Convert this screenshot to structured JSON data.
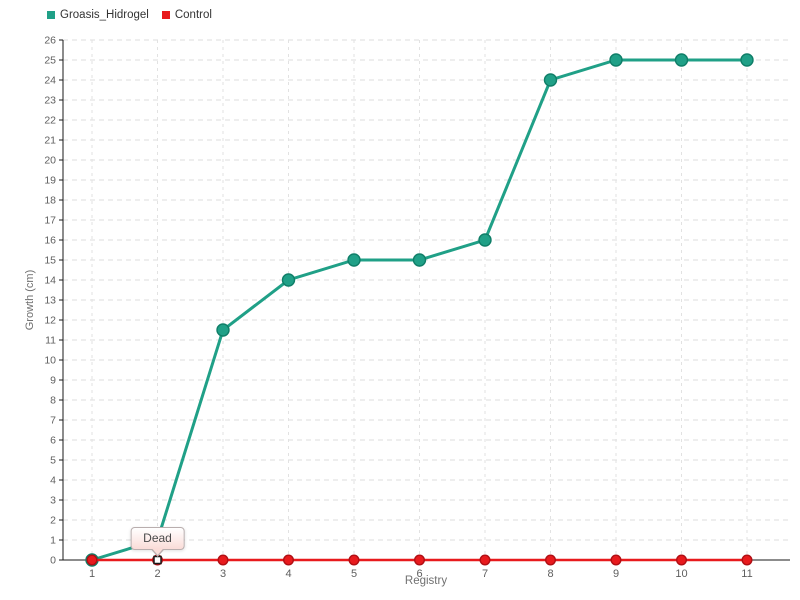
{
  "chart_data": {
    "type": "line",
    "x": [
      1,
      2,
      3,
      4,
      5,
      6,
      7,
      8,
      9,
      10,
      11
    ],
    "x_tick_labels": [
      "1",
      "2",
      "3",
      "4",
      "5",
      "6",
      "7",
      "8",
      "9",
      "10",
      "11"
    ],
    "series": [
      {
        "name": "Groasis_Hidrogel",
        "color": "#20a087",
        "point_border": "#0f7e68",
        "values": [
          0,
          1,
          11.5,
          14,
          15,
          15,
          16,
          24,
          25,
          25,
          25
        ]
      },
      {
        "name": "Control",
        "color": "#e81a1d",
        "point_border": "#b00f14",
        "values": [
          0,
          0,
          0,
          0,
          0,
          0,
          0,
          0,
          0,
          0,
          0
        ]
      }
    ],
    "xlabel": "Registry",
    "ylabel": "Growth (cm)",
    "ylim": [
      0,
      26
    ],
    "y_tick_step": 1,
    "grid": true,
    "legend_position": "top-left",
    "tooltip": {
      "text": "Dead",
      "series": "Control",
      "x": 2
    }
  },
  "colors": {
    "axis": "#1a1a1a",
    "grid_h": "#dcdcdc",
    "grid_v": "#e2e2e2",
    "tick_label": "#5f5f5f",
    "axis_label": "#707070",
    "legend_text": "#333333",
    "tooltip_border": "#b9aeae",
    "tooltip_bg_top": "#ffffff",
    "tooltip_bg_bottom": "#fadcd8",
    "tooltip_text": "#4a4a4a",
    "selected_marker_fill": "#ffffff",
    "selected_marker_border": "#1a1a1a"
  }
}
